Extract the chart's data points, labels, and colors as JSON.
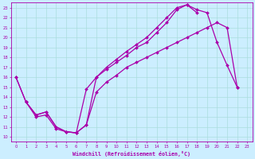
{
  "xlabel": "Windchill (Refroidissement éolien,°C)",
  "bg_color": "#cceeff",
  "grid_color": "#aadddd",
  "line_color": "#aa00aa",
  "xlim": [
    -0.5,
    23.5
  ],
  "ylim": [
    9.5,
    23.5
  ],
  "xticks": [
    0,
    1,
    2,
    3,
    4,
    5,
    6,
    7,
    8,
    9,
    10,
    11,
    12,
    13,
    14,
    15,
    16,
    17,
    18,
    19,
    20,
    21,
    22,
    23
  ],
  "yticks": [
    10,
    11,
    12,
    13,
    14,
    15,
    16,
    17,
    18,
    19,
    20,
    21,
    22,
    23
  ],
  "line1_xy": [
    [
      0,
      16.0
    ],
    [
      1,
      13.5
    ],
    [
      2,
      12.0
    ],
    [
      3,
      12.2
    ],
    [
      4,
      10.8
    ],
    [
      5,
      10.5
    ],
    [
      6,
      10.4
    ],
    [
      7,
      11.2
    ],
    [
      8,
      14.5
    ],
    [
      9,
      15.5
    ],
    [
      10,
      16.2
    ],
    [
      11,
      17.0
    ],
    [
      12,
      17.5
    ],
    [
      13,
      18.0
    ],
    [
      14,
      18.5
    ],
    [
      15,
      19.0
    ],
    [
      16,
      19.5
    ],
    [
      17,
      20.0
    ],
    [
      18,
      20.5
    ],
    [
      19,
      21.0
    ],
    [
      20,
      21.5
    ],
    [
      21,
      21.0
    ],
    [
      22,
      15.0
    ]
  ],
  "line2_xy": [
    [
      0,
      16.0
    ],
    [
      1,
      13.5
    ],
    [
      2,
      12.2
    ],
    [
      3,
      12.5
    ],
    [
      4,
      11.0
    ],
    [
      5,
      10.5
    ],
    [
      6,
      10.4
    ],
    [
      7,
      14.8
    ],
    [
      8,
      16.0
    ],
    [
      9,
      16.8
    ],
    [
      10,
      17.5
    ],
    [
      11,
      18.2
    ],
    [
      12,
      19.0
    ],
    [
      13,
      19.5
    ],
    [
      14,
      20.5
    ],
    [
      15,
      21.5
    ],
    [
      16,
      22.8
    ],
    [
      17,
      23.3
    ],
    [
      18,
      22.8
    ],
    [
      19,
      22.5
    ],
    [
      20,
      19.5
    ],
    [
      21,
      17.2
    ],
    [
      22,
      15.0
    ]
  ],
  "line3_xy": [
    [
      1,
      13.5
    ],
    [
      2,
      12.2
    ],
    [
      3,
      12.5
    ],
    [
      4,
      11.0
    ],
    [
      5,
      10.5
    ],
    [
      6,
      10.4
    ],
    [
      7,
      11.2
    ],
    [
      8,
      16.0
    ],
    [
      9,
      17.0
    ],
    [
      10,
      17.8
    ],
    [
      11,
      18.6
    ],
    [
      12,
      19.3
    ],
    [
      13,
      20.0
    ],
    [
      14,
      21.0
    ],
    [
      15,
      22.0
    ],
    [
      16,
      23.0
    ],
    [
      17,
      23.3
    ],
    [
      18,
      22.5
    ]
  ],
  "marker": "D",
  "markersize": 2.0,
  "linewidth": 0.9
}
